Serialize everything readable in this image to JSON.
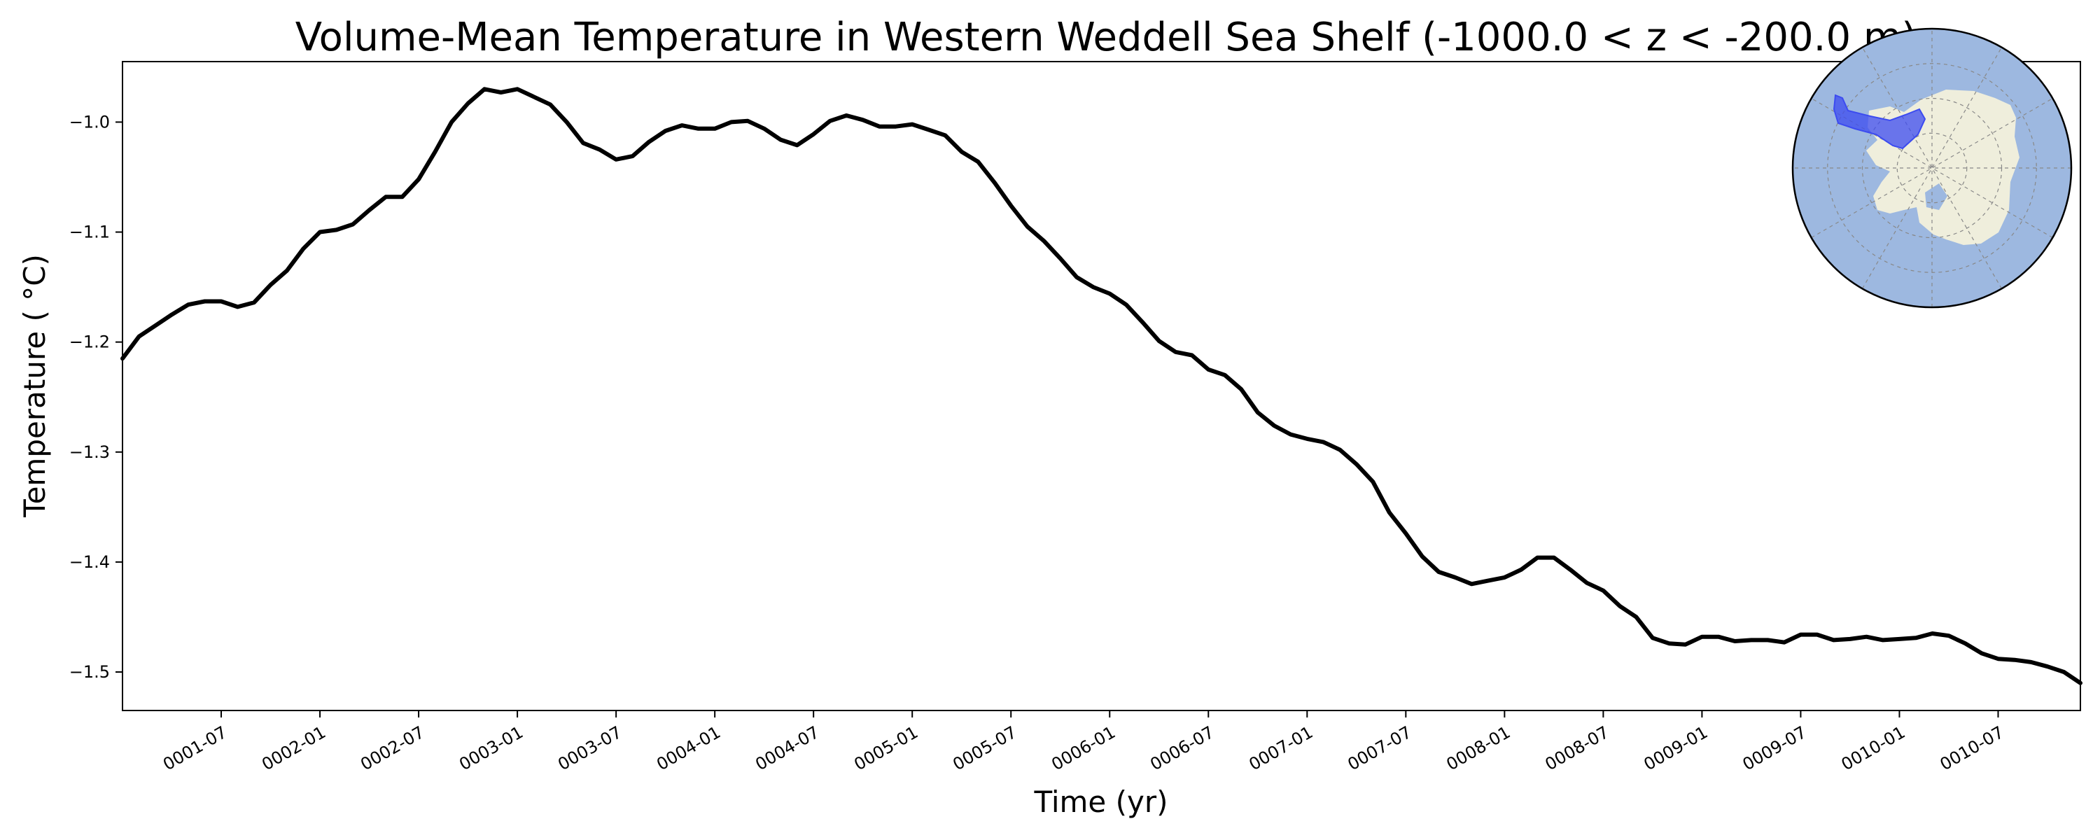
{
  "chart_data": {
    "type": "line",
    "title": "Volume-Mean Temperature in Western Weddell Sea Shelf (-1000.0 < z < -200.0 m)",
    "xlabel": "Time (yr)",
    "ylabel": "Temperature ( °C)",
    "xlim": [
      "0001-01-16",
      "0010-12-16"
    ],
    "ylim": [
      -1.535,
      -0.945
    ],
    "grid": false,
    "line_color": "#000000",
    "xticks": [
      "0001-07",
      "0002-01",
      "0002-07",
      "0003-01",
      "0003-07",
      "0004-01",
      "0004-07",
      "0005-01",
      "0005-07",
      "0006-01",
      "0006-07",
      "0007-01",
      "0007-07",
      "0008-01",
      "0008-07",
      "0009-01",
      "0009-07",
      "0010-01",
      "0010-07"
    ],
    "yticks": [
      -1.5,
      -1.4,
      -1.3,
      -1.2,
      -1.1,
      -1.0
    ],
    "ytick_labels": [
      "−1.5",
      "−1.4",
      "−1.3",
      "−1.2",
      "−1.1",
      "−1.0"
    ],
    "series": [
      {
        "x": [
          "0001-01",
          "0001-02",
          "0001-03",
          "0001-04",
          "0001-05",
          "0001-06",
          "0001-07",
          "0001-08",
          "0001-09",
          "0001-10",
          "0001-11",
          "0001-12",
          "0002-01",
          "0002-02",
          "0002-03",
          "0002-04",
          "0002-05",
          "0002-06",
          "0002-07",
          "0002-08",
          "0002-09",
          "0002-10",
          "0002-11",
          "0002-12",
          "0003-01",
          "0003-02",
          "0003-03",
          "0003-04",
          "0003-05",
          "0003-06",
          "0003-07",
          "0003-08",
          "0003-09",
          "0003-10",
          "0003-11",
          "0003-12",
          "0004-01",
          "0004-02",
          "0004-03",
          "0004-04",
          "0004-05",
          "0004-06",
          "0004-07",
          "0004-08",
          "0004-09",
          "0004-10",
          "0004-11",
          "0004-12",
          "0005-01",
          "0005-02",
          "0005-03",
          "0005-04",
          "0005-05",
          "0005-06",
          "0005-07",
          "0005-08",
          "0005-09",
          "0005-10",
          "0005-11",
          "0005-12",
          "0006-01",
          "0006-02",
          "0006-03",
          "0006-04",
          "0006-05",
          "0006-06",
          "0006-07",
          "0006-08",
          "0006-09",
          "0006-10",
          "0006-11",
          "0006-12",
          "0007-01",
          "0007-02",
          "0007-03",
          "0007-04",
          "0007-05",
          "0007-06",
          "0007-07",
          "0007-08",
          "0007-09",
          "0007-10",
          "0007-11",
          "0007-12",
          "0008-01",
          "0008-02",
          "0008-03",
          "0008-04",
          "0008-05",
          "0008-06",
          "0008-07",
          "0008-08",
          "0008-09",
          "0008-10",
          "0008-11",
          "0008-12",
          "0009-01",
          "0009-02",
          "0009-03",
          "0009-04",
          "0009-05",
          "0009-06",
          "0009-07",
          "0009-08",
          "0009-09",
          "0009-10",
          "0009-11",
          "0009-12",
          "0010-01",
          "0010-02",
          "0010-03",
          "0010-04",
          "0010-05",
          "0010-06",
          "0010-07",
          "0010-08",
          "0010-09",
          "0010-10",
          "0010-11",
          "0010-12"
        ],
        "y": [
          -1.215,
          -1.195,
          -1.185,
          -1.175,
          -1.166,
          -1.163,
          -1.163,
          -1.168,
          -1.164,
          -1.148,
          -1.135,
          -1.115,
          -1.1,
          -1.098,
          -1.093,
          -1.08,
          -1.068,
          -1.068,
          -1.052,
          -1.027,
          -1.0,
          -0.983,
          -0.97,
          -0.973,
          -0.97,
          -0.977,
          -0.984,
          -1.0,
          -1.019,
          -1.025,
          -1.034,
          -1.031,
          -1.018,
          -1.008,
          -1.003,
          -1.006,
          -1.006,
          -1.0,
          -0.999,
          -1.006,
          -1.016,
          -1.021,
          -1.011,
          -0.999,
          -0.994,
          -0.998,
          -1.004,
          -1.004,
          -1.002,
          -1.007,
          -1.012,
          -1.027,
          -1.036,
          -1.055,
          -1.076,
          -1.095,
          -1.108,
          -1.124,
          -1.141,
          -1.15,
          -1.156,
          -1.166,
          -1.182,
          -1.199,
          -1.209,
          -1.212,
          -1.225,
          -1.23,
          -1.243,
          -1.264,
          -1.276,
          -1.284,
          -1.288,
          -1.291,
          -1.298,
          -1.311,
          -1.327,
          -1.355,
          -1.374,
          -1.395,
          -1.409,
          -1.414,
          -1.42,
          -1.417,
          -1.414,
          -1.407,
          -1.396,
          -1.396,
          -1.407,
          -1.419,
          -1.426,
          -1.44,
          -1.45,
          -1.469,
          -1.474,
          -1.475,
          -1.468,
          -1.468,
          -1.472,
          -1.471,
          -1.471,
          -1.473,
          -1.466,
          -1.466,
          -1.471,
          -1.47,
          -1.468,
          -1.471,
          -1.47,
          -1.469,
          -1.465,
          -1.467,
          -1.474,
          -1.483,
          -1.488,
          -1.489,
          -1.491,
          -1.495,
          -1.5,
          -1.51
        ]
      }
    ],
    "inset_map": {
      "projection": "south-polar",
      "ocean_color": "#9db8e0",
      "land_color": "#efeedc",
      "region_color": "#3c4bf0",
      "placement": "top-right"
    }
  }
}
